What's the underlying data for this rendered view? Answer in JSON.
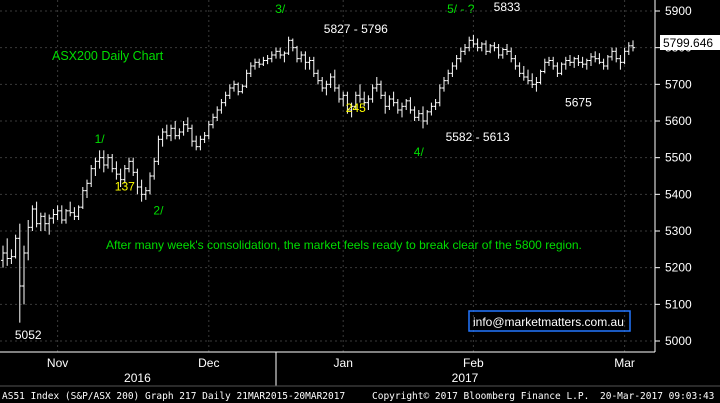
{
  "chart_data": {
    "type": "bar",
    "style": "ohlc",
    "title": "ASX200 Daily Chart",
    "last_price": "5799.646",
    "y_ticks": [
      5000,
      5100,
      5200,
      5300,
      5400,
      5500,
      5600,
      5700,
      5800,
      5900
    ],
    "ylim": [
      4970,
      5930
    ],
    "x_month_labels": [
      {
        "label": "Nov",
        "x_index": 13
      },
      {
        "label": "Dec",
        "x_index": 49
      },
      {
        "label": "Jan",
        "x_index": 81
      },
      {
        "label": "Feb",
        "x_index": 112
      },
      {
        "label": "Mar",
        "x_index": 148
      }
    ],
    "x_year_labels": [
      {
        "label": "2016",
        "x_index": 32
      },
      {
        "label": "2017",
        "x_index": 110
      }
    ],
    "year_divider_index": 65,
    "n_bars": 151,
    "bars": [
      [
        5220,
        5260,
        5200,
        5240
      ],
      [
        5240,
        5280,
        5205,
        5225
      ],
      [
        5225,
        5250,
        5210,
        5230
      ],
      [
        5230,
        5290,
        5225,
        5280
      ],
      [
        5280,
        5320,
        5050,
        5150
      ],
      [
        5150,
        5260,
        5100,
        5240
      ],
      [
        5240,
        5330,
        5220,
        5310
      ],
      [
        5310,
        5370,
        5300,
        5360
      ],
      [
        5360,
        5380,
        5310,
        5320
      ],
      [
        5320,
        5350,
        5300,
        5340
      ],
      [
        5340,
        5350,
        5300,
        5320
      ],
      [
        5320,
        5345,
        5290,
        5335
      ],
      [
        5335,
        5360,
        5320,
        5345
      ],
      [
        5345,
        5370,
        5330,
        5355
      ],
      [
        5355,
        5370,
        5320,
        5330
      ],
      [
        5330,
        5360,
        5320,
        5355
      ],
      [
        5355,
        5380,
        5340,
        5350
      ],
      [
        5350,
        5365,
        5330,
        5340
      ],
      [
        5340,
        5370,
        5330,
        5365
      ],
      [
        5365,
        5420,
        5360,
        5410
      ],
      [
        5410,
        5440,
        5390,
        5430
      ],
      [
        5430,
        5480,
        5420,
        5470
      ],
      [
        5470,
        5500,
        5450,
        5490
      ],
      [
        5490,
        5520,
        5470,
        5500
      ],
      [
        5500,
        5520,
        5460,
        5480
      ],
      [
        5480,
        5510,
        5470,
        5500
      ],
      [
        5500,
        5510,
        5460,
        5470
      ],
      [
        5470,
        5490,
        5440,
        5455
      ],
      [
        5455,
        5470,
        5420,
        5440
      ],
      [
        5440,
        5480,
        5430,
        5470
      ],
      [
        5470,
        5500,
        5460,
        5490
      ],
      [
        5490,
        5500,
        5450,
        5460
      ],
      [
        5460,
        5470,
        5400,
        5420
      ],
      [
        5420,
        5440,
        5380,
        5400
      ],
      [
        5400,
        5420,
        5385,
        5410
      ],
      [
        5410,
        5460,
        5400,
        5450
      ],
      [
        5450,
        5500,
        5440,
        5490
      ],
      [
        5490,
        5560,
        5480,
        5550
      ],
      [
        5550,
        5580,
        5530,
        5570
      ],
      [
        5570,
        5590,
        5550,
        5560
      ],
      [
        5560,
        5590,
        5545,
        5580
      ],
      [
        5580,
        5600,
        5550,
        5560
      ],
      [
        5560,
        5580,
        5550,
        5570
      ],
      [
        5570,
        5600,
        5560,
        5590
      ],
      [
        5590,
        5610,
        5570,
        5580
      ],
      [
        5580,
        5590,
        5530,
        5545
      ],
      [
        5545,
        5560,
        5520,
        5530
      ],
      [
        5530,
        5560,
        5520,
        5550
      ],
      [
        5550,
        5570,
        5540,
        5560
      ],
      [
        5560,
        5600,
        5550,
        5590
      ],
      [
        5590,
        5620,
        5580,
        5610
      ],
      [
        5610,
        5640,
        5600,
        5630
      ],
      [
        5630,
        5660,
        5620,
        5650
      ],
      [
        5650,
        5680,
        5640,
        5670
      ],
      [
        5670,
        5700,
        5660,
        5690
      ],
      [
        5690,
        5710,
        5680,
        5700
      ],
      [
        5700,
        5705,
        5670,
        5680
      ],
      [
        5680,
        5700,
        5675,
        5695
      ],
      [
        5695,
        5740,
        5690,
        5730
      ],
      [
        5730,
        5760,
        5720,
        5750
      ],
      [
        5750,
        5770,
        5740,
        5760
      ],
      [
        5760,
        5770,
        5745,
        5755
      ],
      [
        5755,
        5775,
        5750,
        5765
      ],
      [
        5765,
        5780,
        5755,
        5770
      ],
      [
        5770,
        5790,
        5760,
        5780
      ],
      [
        5780,
        5800,
        5770,
        5790
      ],
      [
        5790,
        5800,
        5770,
        5780
      ],
      [
        5780,
        5790,
        5760,
        5785
      ],
      [
        5785,
        5830,
        5780,
        5820
      ],
      [
        5820,
        5825,
        5790,
        5800
      ],
      [
        5800,
        5805,
        5760,
        5770
      ],
      [
        5770,
        5790,
        5760,
        5780
      ],
      [
        5780,
        5790,
        5740,
        5760
      ],
      [
        5760,
        5775,
        5740,
        5765
      ],
      [
        5765,
        5775,
        5720,
        5730
      ],
      [
        5730,
        5740,
        5700,
        5710
      ],
      [
        5710,
        5720,
        5680,
        5690
      ],
      [
        5690,
        5710,
        5670,
        5700
      ],
      [
        5700,
        5730,
        5690,
        5720
      ],
      [
        5720,
        5740,
        5680,
        5690
      ],
      [
        5690,
        5700,
        5650,
        5660
      ],
      [
        5660,
        5680,
        5640,
        5670
      ],
      [
        5670,
        5680,
        5620,
        5630
      ],
      [
        5630,
        5650,
        5610,
        5640
      ],
      [
        5640,
        5680,
        5630,
        5670
      ],
      [
        5670,
        5700,
        5650,
        5660
      ],
      [
        5660,
        5680,
        5640,
        5650
      ],
      [
        5650,
        5670,
        5630,
        5660
      ],
      [
        5660,
        5700,
        5650,
        5690
      ],
      [
        5690,
        5720,
        5680,
        5700
      ],
      [
        5700,
        5710,
        5660,
        5670
      ],
      [
        5670,
        5680,
        5620,
        5640
      ],
      [
        5640,
        5670,
        5630,
        5660
      ],
      [
        5660,
        5680,
        5640,
        5650
      ],
      [
        5650,
        5660,
        5620,
        5630
      ],
      [
        5630,
        5650,
        5610,
        5640
      ],
      [
        5640,
        5660,
        5630,
        5655
      ],
      [
        5655,
        5665,
        5620,
        5630
      ],
      [
        5630,
        5640,
        5600,
        5610
      ],
      [
        5610,
        5630,
        5600,
        5620
      ],
      [
        5620,
        5640,
        5580,
        5600
      ],
      [
        5600,
        5630,
        5590,
        5625
      ],
      [
        5625,
        5650,
        5615,
        5640
      ],
      [
        5640,
        5660,
        5630,
        5650
      ],
      [
        5650,
        5700,
        5640,
        5690
      ],
      [
        5690,
        5720,
        5680,
        5710
      ],
      [
        5710,
        5740,
        5700,
        5730
      ],
      [
        5730,
        5760,
        5720,
        5750
      ],
      [
        5750,
        5780,
        5740,
        5770
      ],
      [
        5770,
        5800,
        5760,
        5790
      ],
      [
        5790,
        5810,
        5780,
        5800
      ],
      [
        5800,
        5830,
        5790,
        5820
      ],
      [
        5820,
        5835,
        5800,
        5810
      ],
      [
        5810,
        5825,
        5790,
        5800
      ],
      [
        5800,
        5815,
        5790,
        5810
      ],
      [
        5810,
        5820,
        5780,
        5790
      ],
      [
        5790,
        5810,
        5785,
        5805
      ],
      [
        5805,
        5815,
        5790,
        5800
      ],
      [
        5800,
        5810,
        5770,
        5780
      ],
      [
        5780,
        5800,
        5770,
        5795
      ],
      [
        5795,
        5810,
        5780,
        5790
      ],
      [
        5790,
        5800,
        5760,
        5770
      ],
      [
        5770,
        5780,
        5740,
        5750
      ],
      [
        5750,
        5760,
        5720,
        5730
      ],
      [
        5730,
        5750,
        5710,
        5720
      ],
      [
        5720,
        5740,
        5700,
        5710
      ],
      [
        5710,
        5730,
        5690,
        5700
      ],
      [
        5700,
        5720,
        5680,
        5705
      ],
      [
        5705,
        5740,
        5700,
        5735
      ],
      [
        5735,
        5770,
        5730,
        5760
      ],
      [
        5760,
        5775,
        5750,
        5765
      ],
      [
        5765,
        5775,
        5740,
        5750
      ],
      [
        5750,
        5760,
        5720,
        5730
      ],
      [
        5730,
        5760,
        5725,
        5755
      ],
      [
        5755,
        5775,
        5740,
        5765
      ],
      [
        5765,
        5780,
        5750,
        5760
      ],
      [
        5760,
        5775,
        5745,
        5770
      ],
      [
        5770,
        5780,
        5750,
        5760
      ],
      [
        5760,
        5775,
        5745,
        5755
      ],
      [
        5755,
        5770,
        5740,
        5765
      ],
      [
        5765,
        5785,
        5750,
        5775
      ],
      [
        5775,
        5790,
        5760,
        5770
      ],
      [
        5770,
        5785,
        5755,
        5760
      ],
      [
        5760,
        5770,
        5740,
        5750
      ],
      [
        5750,
        5780,
        5740,
        5775
      ],
      [
        5775,
        5800,
        5765,
        5790
      ],
      [
        5790,
        5800,
        5760,
        5770
      ],
      [
        5770,
        5780,
        5740,
        5760
      ],
      [
        5760,
        5800,
        5755,
        5790
      ],
      [
        5790,
        5815,
        5780,
        5805
      ],
      [
        5805,
        5820,
        5790,
        5800
      ]
    ],
    "annotations": [
      {
        "text": "3/",
        "x_index": 66,
        "price": 5895,
        "color": "#00dd00"
      },
      {
        "text": "5827 - 5796",
        "x_index": 84,
        "price": 5840,
        "color": "#ffffff"
      },
      {
        "text": "5/ - ?",
        "x_index": 109,
        "price": 5895,
        "color": "#00dd00"
      },
      {
        "text": "5833",
        "x_index": 120,
        "price": 5900,
        "color": "#ffffff"
      },
      {
        "text": "1/",
        "x_index": 23,
        "price": 5540,
        "color": "#00dd00"
      },
      {
        "text": "137",
        "x_index": 29,
        "price": 5410,
        "color": "#ffff00"
      },
      {
        "text": "2/",
        "x_index": 37,
        "price": 5345,
        "color": "#00dd00"
      },
      {
        "text": "245",
        "x_index": 84,
        "price": 5625,
        "color": "#ffff00"
      },
      {
        "text": "4/",
        "x_index": 99,
        "price": 5505,
        "color": "#00dd00"
      },
      {
        "text": "5582 - 5613",
        "x_index": 113,
        "price": 5545,
        "color": "#ffffff"
      },
      {
        "text": "5675",
        "x_index": 137,
        "price": 5640,
        "color": "#ffffff"
      },
      {
        "text": "5052",
        "x_index": 6,
        "price": 5005,
        "color": "#ffffff"
      }
    ],
    "comment": "After many week's consolidation, the market feels ready to break clear of the 5800 region.",
    "watermark": "info@marketmatters.com.au"
  },
  "footer": {
    "left": "AS51 Index (S&P/ASX 200) Graph 217  Daily 21MAR2015-20MAR2017",
    "middle": "Copyright© 2017 Bloomberg Finance L.P.",
    "right": "20-Mar-2017 09:03:43"
  },
  "colors": {
    "background": "#000000",
    "bars": "#ffffff",
    "grid": "#3a3a3a",
    "title": "#00dd00",
    "comment": "#00dd00",
    "watermark_border": "#2277ff",
    "price_tag_bg": "#ffffff",
    "price_tag_text": "#000000"
  }
}
